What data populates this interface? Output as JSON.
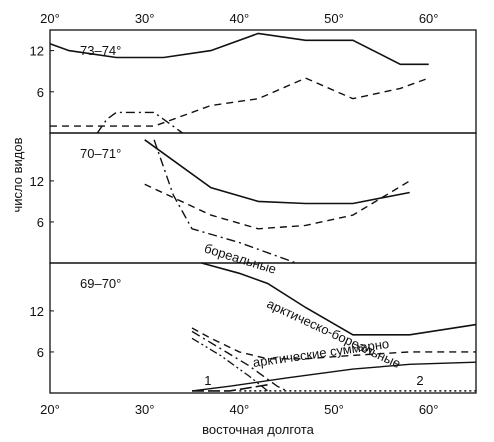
{
  "chart_data": {
    "type": "line",
    "xlabel": "восточная долгота",
    "ylabel": "число видов",
    "x_tick_labels": [
      "20°",
      "30°",
      "40°",
      "50°",
      "60°"
    ],
    "x_ticks": [
      20,
      30,
      40,
      50,
      60
    ],
    "xlim": [
      20,
      65
    ],
    "panels": [
      {
        "label": "73–74°",
        "ylim": [
          0,
          15
        ],
        "y_ticks": [
          {
            "value": 6,
            "label": "6"
          },
          {
            "value": 12,
            "label": "12"
          }
        ],
        "series": [
          {
            "style": "solid",
            "points": [
              [
                20,
                13
              ],
              [
                22,
                12
              ],
              [
                27,
                11
              ],
              [
                32,
                11
              ],
              [
                37,
                12
              ],
              [
                42,
                14.5
              ],
              [
                47,
                13.5
              ],
              [
                52,
                13.5
              ],
              [
                57,
                10
              ],
              [
                60,
                10
              ]
            ]
          },
          {
            "style": "dashed",
            "points": [
              [
                20,
                1
              ],
              [
                25,
                1
              ],
              [
                31,
                1
              ],
              [
                33,
                2
              ],
              [
                37,
                4
              ],
              [
                42,
                5
              ],
              [
                47,
                8
              ],
              [
                52,
                5
              ],
              [
                57,
                6.5
              ],
              [
                60,
                8
              ]
            ]
          },
          {
            "style": "dashdot",
            "points": [
              [
                25,
                0
              ],
              [
                26,
                2
              ],
              [
                27,
                3
              ],
              [
                31,
                3
              ],
              [
                32,
                2
              ],
              [
                34,
                0
              ]
            ]
          }
        ],
        "annotations": []
      },
      {
        "label": "70–71°",
        "ylim": [
          0,
          19
        ],
        "y_ticks": [
          {
            "value": 6,
            "label": "6"
          },
          {
            "value": 12,
            "label": "12"
          }
        ],
        "series": [
          {
            "style": "solid",
            "points": [
              [
                30,
                18
              ],
              [
                37,
                11
              ],
              [
                42,
                9
              ],
              [
                47,
                8.7
              ],
              [
                52,
                8.7
              ],
              [
                58,
                10.3
              ]
            ]
          },
          {
            "style": "dashed",
            "points": [
              [
                30,
                11.5
              ],
              [
                37,
                7
              ],
              [
                42,
                5
              ],
              [
                47,
                5.5
              ],
              [
                52,
                7
              ],
              [
                58,
                12
              ]
            ]
          },
          {
            "style": "dashdot",
            "points": [
              [
                31,
                18
              ],
              [
                33,
                10
              ],
              [
                35,
                5
              ],
              [
                40,
                3
              ],
              [
                46,
                0
              ]
            ]
          }
        ],
        "annotations": [
          {
            "text": "бореальные",
            "x": 36.2,
            "y": 1.6,
            "rotate": 17
          }
        ]
      },
      {
        "label": "69–70°",
        "ylim": [
          0,
          19
        ],
        "y_ticks": [
          {
            "value": 6,
            "label": "6"
          },
          {
            "value": 12,
            "label": "12"
          }
        ],
        "series": [
          {
            "style": "solid",
            "points": [
              [
                36,
                19
              ],
              [
                40,
                17.5
              ],
              [
                43,
                16
              ],
              [
                47,
                12.5
              ],
              [
                52,
                8.5
              ],
              [
                58,
                8.5
              ],
              [
                65,
                10
              ]
            ]
          },
          {
            "style": "dashed",
            "points": [
              [
                35,
                9.5
              ],
              [
                37,
                8
              ],
              [
                40,
                6
              ],
              [
                43,
                5
              ],
              [
                47,
                5
              ],
              [
                52,
                5.5
              ],
              [
                58,
                6
              ],
              [
                65,
                6
              ]
            ]
          },
          {
            "style": "dashdot",
            "points": [
              [
                35,
                9
              ],
              [
                38,
                6.5
              ],
              [
                41,
                4
              ],
              [
                44,
                1
              ],
              [
                45,
                0.3
              ]
            ]
          },
          {
            "style": "dashdotdot",
            "points": [
              [
                35,
                8
              ],
              [
                38,
                5.5
              ],
              [
                41,
                2.5
              ],
              [
                43,
                0.3
              ]
            ]
          },
          {
            "style": "solid-thin",
            "points": [
              [
                35,
                0.3
              ],
              [
                39,
                1
              ],
              [
                45,
                2.2
              ],
              [
                52,
                3.5
              ],
              [
                58,
                4.2
              ],
              [
                65,
                4.5
              ]
            ]
          },
          {
            "style": "longdash",
            "points": [
              [
                35,
                0.3
              ],
              [
                39,
                0.3
              ],
              [
                43,
                1.2
              ]
            ]
          },
          {
            "style": "dotted",
            "points": [
              [
                40,
                0.3
              ],
              [
                65,
                0.3
              ]
            ]
          }
        ],
        "annotations": [
          {
            "text": "арктическо-бореальные",
            "x": 42.8,
            "y": 12.6,
            "rotate": 25
          },
          {
            "text": "арктические суммарно",
            "x": 41.5,
            "y": 3.8,
            "rotate": -8
          },
          {
            "text": "1",
            "x": 36.3,
            "y": 1.2,
            "rotate": 0
          },
          {
            "text": "2",
            "x": 58.7,
            "y": 1.2,
            "rotate": 0
          }
        ]
      }
    ]
  }
}
